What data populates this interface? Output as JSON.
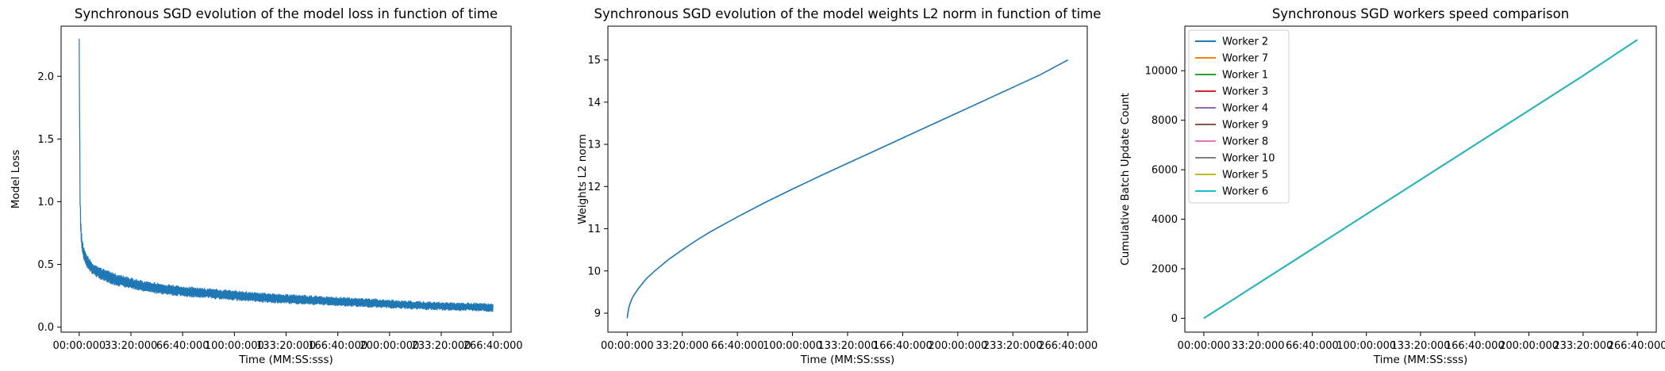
{
  "chart_data": [
    {
      "type": "line",
      "title": "Synchronous SGD evolution of the model loss in function of time",
      "xlabel": "Time (MM:SS:sss)",
      "ylabel": "Model Loss",
      "x_tick_labels": [
        "00:00:000",
        "33:20:000",
        "66:40:000",
        "100:00:000",
        "133:20:000",
        "166:40:000",
        "200:00:000",
        "233:20:000",
        "266:40:000"
      ],
      "x_tick_seconds": [
        0,
        2000,
        4000,
        6000,
        8000,
        10000,
        12000,
        14000,
        16000
      ],
      "xlim": [
        -700,
        16700
      ],
      "y_ticks": [
        0.0,
        0.5,
        1.0,
        1.5,
        2.0
      ],
      "y_tick_labels": [
        "0.0",
        "0.5",
        "1.0",
        "1.5",
        "2.0"
      ],
      "ylim": [
        -0.04,
        2.4
      ],
      "grid": false,
      "color": "#1f77b4",
      "series": [
        {
          "x": [
            0,
            15,
            30,
            50,
            80,
            120,
            180,
            260,
            350,
            500,
            700,
            1000,
            1400,
            1800,
            2400,
            3000,
            3800,
            4600,
            5500,
            6500,
            7500,
            8500,
            9500,
            10500,
            11500,
            12500,
            13500,
            14500,
            15500,
            16000
          ],
          "values": [
            2.3,
            1.7,
            1.1,
            0.85,
            0.72,
            0.64,
            0.58,
            0.54,
            0.51,
            0.47,
            0.44,
            0.41,
            0.38,
            0.36,
            0.33,
            0.31,
            0.29,
            0.275,
            0.26,
            0.245,
            0.23,
            0.22,
            0.21,
            0.2,
            0.19,
            0.18,
            0.17,
            0.165,
            0.16,
            0.155
          ],
          "band": [
            0,
            0.25,
            0.2,
            0.15,
            0.13,
            0.12,
            0.11,
            0.1,
            0.1,
            0.1,
            0.1,
            0.1,
            0.1,
            0.095,
            0.09,
            0.09,
            0.09,
            0.085,
            0.085,
            0.08,
            0.08,
            0.08,
            0.075,
            0.075,
            0.075,
            0.07,
            0.07,
            0.07,
            0.07,
            0.07
          ]
        }
      ]
    },
    {
      "type": "line",
      "title": "Synchronous SGD evolution of the model weights L2 norm in function of time",
      "xlabel": "Time (MM:SS:sss)",
      "ylabel": "Weights L2 norm",
      "x_tick_labels": [
        "00:00:000",
        "33:20:000",
        "66:40:000",
        "100:00:000",
        "133:20:000",
        "166:40:000",
        "200:00:000",
        "233:20:000",
        "266:40:000"
      ],
      "x_tick_seconds": [
        0,
        2000,
        4000,
        6000,
        8000,
        10000,
        12000,
        14000,
        16000
      ],
      "xlim": [
        -700,
        16700
      ],
      "y_ticks": [
        9,
        10,
        11,
        12,
        13,
        14,
        15
      ],
      "y_tick_labels": [
        "9",
        "10",
        "11",
        "12",
        "13",
        "14",
        "15"
      ],
      "ylim": [
        8.55,
        15.8
      ],
      "grid": false,
      "color": "#1f77b4",
      "series": [
        {
          "x": [
            0,
            50,
            100,
            200,
            400,
            700,
            1000,
            1500,
            2000,
            2500,
            3000,
            3500,
            4000,
            5000,
            6000,
            7000,
            8000,
            9000,
            10000,
            11000,
            12000,
            13000,
            14000,
            15000,
            16000
          ],
          "values": [
            8.88,
            9.1,
            9.22,
            9.38,
            9.58,
            9.82,
            10.0,
            10.27,
            10.5,
            10.72,
            10.92,
            11.1,
            11.28,
            11.62,
            11.94,
            12.25,
            12.55,
            12.85,
            13.15,
            13.45,
            13.75,
            14.05,
            14.35,
            14.65,
            15.0
          ]
        }
      ]
    },
    {
      "type": "line",
      "title": "Synchronous SGD workers speed comparison",
      "xlabel": "Time (MM:SS:sss)",
      "ylabel": "Cumulative Batch Update Count",
      "x_tick_labels": [
        "00:00:000",
        "33:20:000",
        "66:40:000",
        "100:00:000",
        "133:20:000",
        "166:40:000",
        "200:00:000",
        "233:20:000",
        "266:40:000"
      ],
      "x_tick_seconds": [
        0,
        2000,
        4000,
        6000,
        8000,
        10000,
        12000,
        14000,
        16000
      ],
      "xlim": [
        -700,
        16700
      ],
      "y_ticks": [
        0,
        2000,
        4000,
        6000,
        8000,
        10000
      ],
      "y_tick_labels": [
        "0",
        "2000",
        "4000",
        "6000",
        "8000",
        "10000"
      ],
      "ylim": [
        -560,
        11800
      ],
      "grid": false,
      "legend": "upper-left",
      "series": [
        {
          "name": "Worker 2",
          "color": "#1f77b4"
        },
        {
          "name": "Worker 7",
          "color": "#ff7f0e"
        },
        {
          "name": "Worker 1",
          "color": "#2ca02c"
        },
        {
          "name": "Worker 3",
          "color": "#d62728"
        },
        {
          "name": "Worker 4",
          "color": "#9467bd"
        },
        {
          "name": "Worker 9",
          "color": "#8c564b"
        },
        {
          "name": "Worker 8",
          "color": "#e377c2"
        },
        {
          "name": "Worker 10",
          "color": "#7f7f7f"
        },
        {
          "name": "Worker 5",
          "color": "#bcbd22"
        },
        {
          "name": "Worker 6",
          "color": "#17becf"
        }
      ],
      "shared_x": [
        0,
        2000,
        4000,
        6000,
        8000,
        10000,
        12000,
        14000,
        16000
      ],
      "shared_values": [
        0,
        1400,
        2800,
        4200,
        5600,
        7000,
        8400,
        9800,
        11250
      ]
    }
  ]
}
